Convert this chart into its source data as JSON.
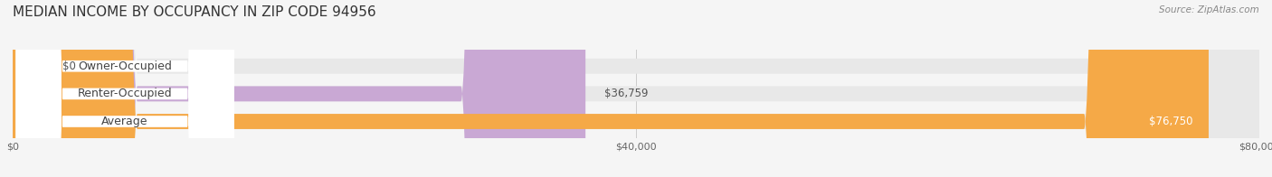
{
  "title": "MEDIAN INCOME BY OCCUPANCY IN ZIP CODE 94956",
  "source": "Source: ZipAtlas.com",
  "categories": [
    "Owner-Occupied",
    "Renter-Occupied",
    "Average"
  ],
  "values": [
    0,
    36759,
    76750
  ],
  "bar_colors": [
    "#6ecfcf",
    "#c9a8d4",
    "#f5a947"
  ],
  "label_colors": [
    "#6ecfcf",
    "#c9a8d4",
    "#f5a947"
  ],
  "value_labels": [
    "$0",
    "$36,759",
    "$76,750"
  ],
  "xlim": [
    0,
    80000
  ],
  "xticks": [
    0,
    40000,
    80000
  ],
  "xtick_labels": [
    "$0",
    "$40,000",
    "$80,000"
  ],
  "bar_height": 0.55,
  "background_color": "#f5f5f5",
  "bar_bg_color": "#e8e8e8",
  "title_fontsize": 11,
  "label_fontsize": 9,
  "value_fontsize": 8.5
}
